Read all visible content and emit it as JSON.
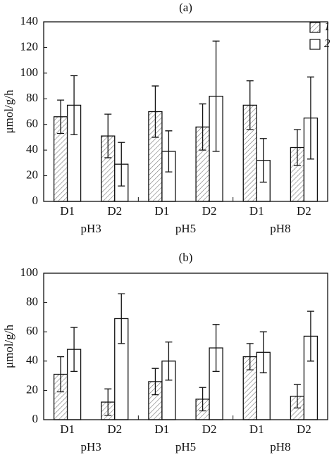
{
  "chart_data": [
    {
      "type": "bar",
      "title": "(a)",
      "ylabel": "μmol/g/h",
      "categories": [
        "D1",
        "D2",
        "D1",
        "D2",
        "D1",
        "D2"
      ],
      "groups": [
        "pH3",
        "pH5",
        "pH8"
      ],
      "ylim": [
        0,
        140
      ],
      "yticks": [
        0,
        20,
        40,
        60,
        80,
        100,
        120,
        140
      ],
      "legend": "upper right",
      "series": [
        {
          "name": "1",
          "color": "hatch",
          "values": [
            66,
            51,
            70,
            58,
            75,
            42
          ],
          "errors": [
            13,
            17,
            20,
            18,
            19,
            14
          ]
        },
        {
          "name": "2",
          "color": "#ffffff",
          "values": [
            75,
            29,
            39,
            82,
            32,
            65
          ],
          "errors": [
            23,
            17,
            16,
            43,
            17,
            32
          ]
        }
      ]
    },
    {
      "type": "bar",
      "title": "(b)",
      "ylabel": "μmol/g/h",
      "categories": [
        "D1",
        "D2",
        "D1",
        "D2",
        "D1",
        "D2"
      ],
      "groups": [
        "pH3",
        "pH5",
        "pH8"
      ],
      "ylim": [
        0,
        100
      ],
      "yticks": [
        0,
        20,
        40,
        60,
        80,
        100
      ],
      "series": [
        {
          "color": "hatch",
          "values": [
            31,
            12,
            26,
            14,
            43,
            16
          ],
          "errors": [
            12,
            9,
            9,
            8,
            9,
            8
          ]
        },
        {
          "color": "#ffffff",
          "values": [
            48,
            69,
            40,
            49,
            46,
            57
          ],
          "errors": [
            15,
            17,
            13,
            16,
            14,
            17
          ]
        }
      ]
    }
  ]
}
